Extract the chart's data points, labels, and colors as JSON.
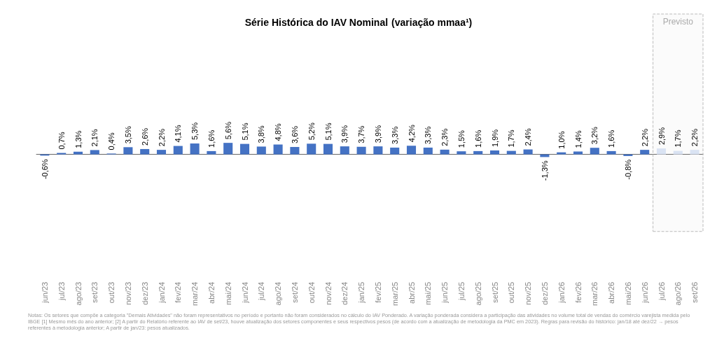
{
  "chart_data": {
    "type": "bar",
    "title": "Série Histórica do IAV Nominal",
    "subtitle": "(variação mmaa¹)",
    "categories": [
      "jun/23",
      "jul/23",
      "ago/23",
      "set/23",
      "out/23",
      "nov/23",
      "dez/23",
      "jan/24",
      "fev/24",
      "mar/24",
      "abr/24",
      "mai/24",
      "jun/24",
      "jul/24",
      "ago/24",
      "set/24",
      "out/24",
      "nov/24",
      "dez/24",
      "jan/25",
      "fev/25",
      "mar/25",
      "abr/25",
      "mai/25",
      "jun/25",
      "jul/25",
      "ago/25",
      "set/25",
      "out/25",
      "nov/25",
      "dez/25",
      "jan/26",
      "fev/26",
      "mar/26",
      "abr/26",
      "mai/26",
      "jun/26",
      "jul/26",
      "ago/26",
      "set/26"
    ],
    "values": [
      -0.6,
      0.7,
      1.3,
      2.1,
      0.4,
      3.5,
      2.6,
      2.2,
      4.1,
      5.3,
      1.6,
      5.6,
      5.1,
      3.8,
      4.8,
      3.6,
      5.2,
      5.1,
      3.9,
      3.7,
      3.9,
      3.3,
      4.2,
      3.3,
      2.3,
      1.5,
      1.6,
      1.9,
      1.7,
      2.4,
      -1.3,
      1.0,
      1.4,
      3.2,
      1.6,
      -0.8,
      2.2,
      2.9,
      1.7,
      2.2
    ],
    "value_labels": [
      "-0,6%",
      "0,7%",
      "1,3%",
      "2,1%",
      "0,4%",
      "3,5%",
      "2,6%",
      "2,2%",
      "4,1%",
      "5,3%",
      "1,6%",
      "5,6%",
      "5,1%",
      "3,8%",
      "4,8%",
      "3,6%",
      "5,2%",
      "5,1%",
      "3,9%",
      "3,7%",
      "3,9%",
      "3,3%",
      "4,2%",
      "3,3%",
      "2,3%",
      "1,5%",
      "1,6%",
      "1,9%",
      "1,7%",
      "2,4%",
      "-1,3%",
      "1,0%",
      "1,4%",
      "3,2%",
      "1,6%",
      "-0,8%",
      "2,2%",
      "2,9%",
      "1,7%",
      "2,2%"
    ],
    "colors": [
      "#4472c4",
      "#4472c4",
      "#4472c4",
      "#4472c4",
      "#4472c4",
      "#4472c4",
      "#4472c4",
      "#4472c4",
      "#4472c4",
      "#4472c4",
      "#4472c4",
      "#4472c4",
      "#4472c4",
      "#4472c4",
      "#4472c4",
      "#4472c4",
      "#4472c4",
      "#4472c4",
      "#4472c4",
      "#4472c4",
      "#4472c4",
      "#4472c4",
      "#4472c4",
      "#4472c4",
      "#4472c4",
      "#4472c4",
      "#4472c4",
      "#4472c4",
      "#4472c4",
      "#4472c4",
      "#4472c4",
      "#4472c4",
      "#4472c4",
      "#4472c4",
      "#4472c4",
      "#4472c4",
      "#4472c4",
      "#dae3f3",
      "#dae3f3",
      "#dae3f3"
    ],
    "bands": [
      {
        "axis": "x",
        "from": "jul/26",
        "to": "set/26",
        "label": "Previsto",
        "color": "#bbbbbb"
      }
    ],
    "annotations": [
      "Notas: Os setores que compõe a categoria \"Demais Atividades\" não foram representativos no período e portanto não foram considerados no cálculo do IAV Ponderado. A variação ponderada considera a participação das atividades no volume total de vendas do comércio varejista medida pelo IBGE [1] Mesmo mês do ano anterior; [2] A partir do Relatório referente ao IAV de set/23, houve atualização dos setores componentes e seus respectivos pesos (de acordo com a atualização de metodologia da PMC em 2023). Regras para revisão do histórico: jan/18 até dez/22 → pesos referentes à metodologia anterior; A partir de jan/23: pesos atualizados."
    ],
    "grid": false
  }
}
